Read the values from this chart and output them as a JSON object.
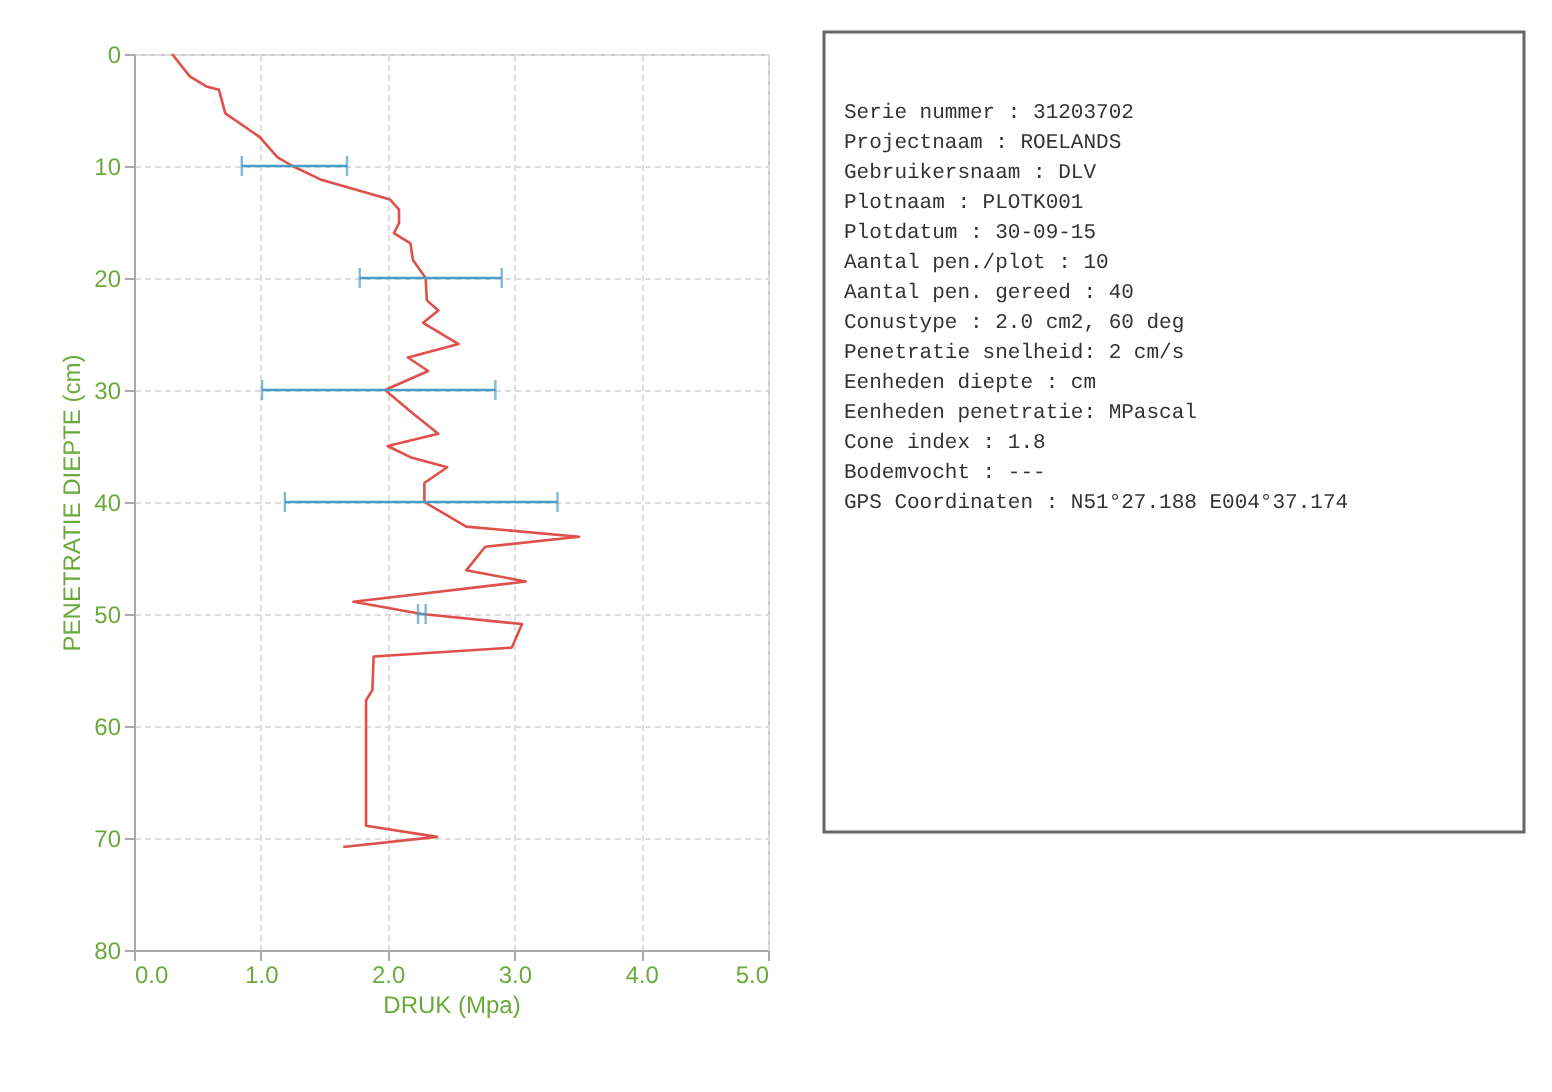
{
  "chart_data": [
    {
      "type": "line",
      "xlabel": "DRUK (Mpa)",
      "ylabel": "PENETRATIE DIEPTE (cm)",
      "xlim": [
        0,
        5
      ],
      "xticks": [
        {
          "value": 0,
          "label": "0.0"
        },
        {
          "value": 1,
          "label": "1.0"
        },
        {
          "value": 2,
          "label": "2.0"
        },
        {
          "value": 3,
          "label": "3.0"
        },
        {
          "value": 4,
          "label": "4.0"
        },
        {
          "value": 5,
          "label": "5.0"
        }
      ],
      "ylim": [
        80,
        0
      ],
      "yticks": [
        0,
        10,
        20,
        30,
        40,
        50,
        60,
        70,
        80
      ],
      "grid": true,
      "series": [
        {
          "color": "#e0504a",
          "x": [
            0.3,
            0.44,
            0.57,
            0.67,
            0.72,
            0.99,
            1.13,
            1.25,
            1.47,
            2.02,
            2.09,
            2.09,
            2.05,
            2.18,
            2.2,
            2.3,
            2.31,
            2.4,
            2.28,
            2.56,
            2.16,
            2.32,
            1.98,
            2.2,
            2.4,
            2.0,
            2.18,
            2.47,
            2.29,
            2.29,
            2.62,
            3.51,
            2.77,
            2.62,
            3.09,
            1.73,
            2.27,
            3.06,
            2.98,
            1.89,
            1.88,
            1.83,
            1.83,
            2.39,
            1.65
          ],
          "values": [
            0,
            2.0,
            2.9,
            3.2,
            5.3,
            7.4,
            9.2,
            10,
            11.2,
            13.0,
            13.9,
            15.1,
            16.0,
            16.9,
            18.4,
            20,
            22.0,
            22.9,
            24.0,
            25.9,
            27.1,
            28.3,
            30,
            32.1,
            33.9,
            35.0,
            36.0,
            36.9,
            38.3,
            40,
            42.2,
            43.1,
            44.0,
            46.1,
            47.1,
            48.9,
            50,
            50.9,
            53.0,
            53.8,
            56.8,
            57.7,
            68.9,
            69.9,
            70.8
          ],
          "xerrors": [
            null,
            null,
            null,
            null,
            null,
            null,
            null,
            [
              0.85,
              1.68
            ],
            null,
            null,
            null,
            null,
            null,
            null,
            null,
            [
              1.78,
              2.9
            ],
            null,
            null,
            null,
            null,
            null,
            null,
            [
              1.01,
              2.85
            ],
            null,
            null,
            null,
            null,
            null,
            null,
            [
              1.19,
              3.34
            ],
            null,
            null,
            null,
            null,
            null,
            null,
            [
              2.24,
              2.3
            ],
            null,
            null,
            null,
            null,
            null,
            null,
            null,
            null
          ]
        }
      ]
    },
    {
      "type": "other",
      "annotations": [
        "Serie nummer      : 31203702",
        "Projectnaam       : ROELANDS",
        "Gebruikersnaam    : DLV",
        "Plotnaam          : PLOTK001",
        "Plotdatum         : 30-09-15",
        "Aantal pen./plot  : 10",
        "Aantal pen. gereed : 40",
        "Conustype         : 2.0 cm2, 60 deg",
        "Penetratie snelheid: 2 cm/s",
        "Eenheden diepte   : cm",
        "Eenheden penetratie: MPascal",
        "Cone index        :  1.8",
        "Bodemvocht        :   ---",
        "GPS Coordinaten   :  N51°27.188 E004°37.174"
      ]
    }
  ]
}
